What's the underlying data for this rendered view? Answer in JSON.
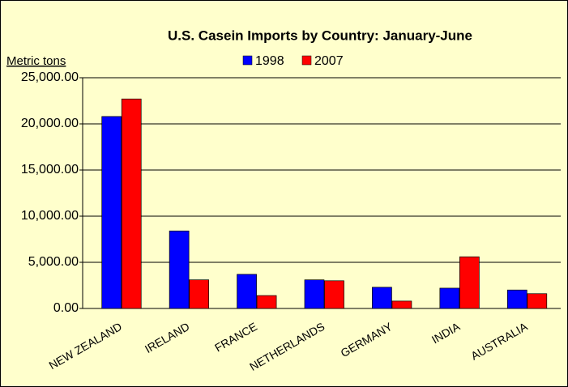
{
  "chart_data": {
    "type": "bar",
    "title": "U.S. Casein Imports by Country: January-June",
    "y_label": "Metric tons",
    "categories": [
      "NEW ZEALAND",
      "IRELAND",
      "FRANCE",
      "NETHERLANDS",
      "GERMANY",
      "INDIA",
      "AUSTRALIA"
    ],
    "series": [
      {
        "name": "1998",
        "color": "#0000ff",
        "values": [
          20800,
          8400,
          3700,
          3100,
          2300,
          2200,
          2000
        ]
      },
      {
        "name": "2007",
        "color": "#ff0000",
        "values": [
          22700,
          3100,
          1400,
          3000,
          800,
          5600,
          1600
        ]
      }
    ],
    "ylim": [
      0,
      25000
    ],
    "yticks": [
      {
        "value": 0,
        "label": "0.00"
      },
      {
        "value": 5000,
        "label": "5,000.00"
      },
      {
        "value": 10000,
        "label": "10,000.00"
      },
      {
        "value": 15000,
        "label": "15,000.00"
      },
      {
        "value": 20000,
        "label": "20,000.00"
      },
      {
        "value": 25000,
        "label": "25,000.00"
      }
    ],
    "grid": true
  }
}
